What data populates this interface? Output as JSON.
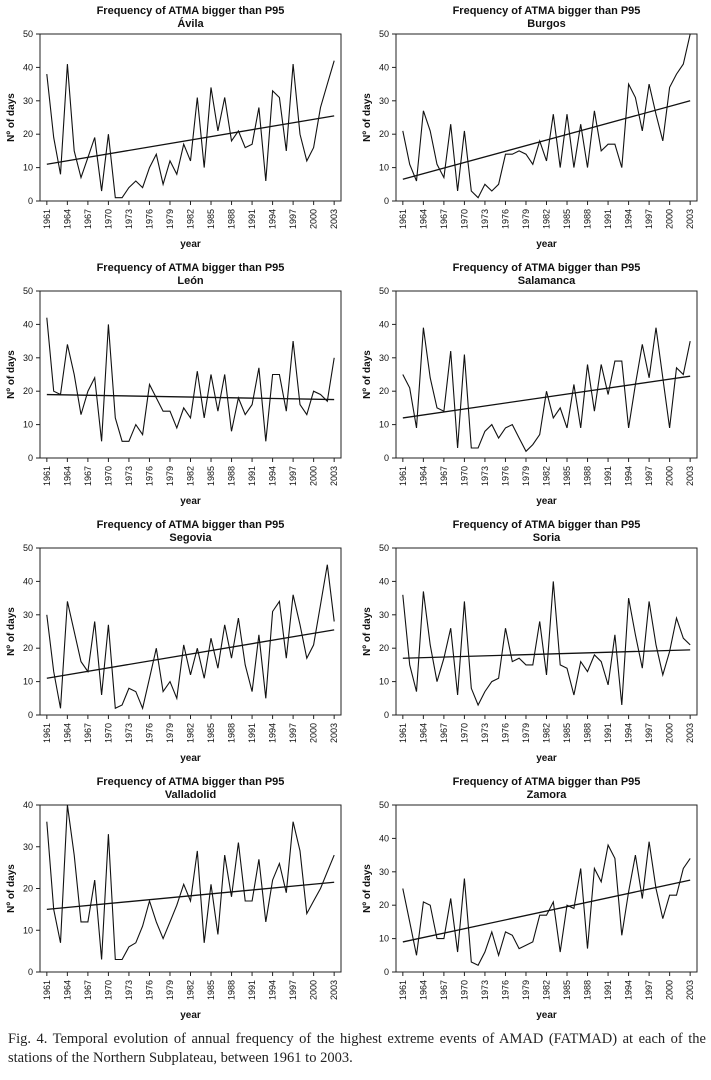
{
  "chart_data": [
    {
      "type": "line",
      "title": "Frequency of ATMA bigger than P95",
      "subtitle": "Ávila",
      "xlabel": "year",
      "ylabel": "Nº of days",
      "ylim": [
        0,
        50
      ],
      "y_ticks": [
        0,
        10,
        20,
        30,
        40,
        50
      ],
      "x_ticks": [
        1961,
        1964,
        1967,
        1970,
        1973,
        1976,
        1979,
        1982,
        1985,
        1988,
        1991,
        1994,
        1997,
        2000,
        2003
      ],
      "x": [
        1961,
        1962,
        1963,
        1964,
        1965,
        1966,
        1967,
        1968,
        1969,
        1970,
        1971,
        1972,
        1973,
        1974,
        1975,
        1976,
        1977,
        1978,
        1979,
        1980,
        1981,
        1982,
        1983,
        1984,
        1985,
        1986,
        1987,
        1988,
        1989,
        1990,
        1991,
        1992,
        1993,
        1994,
        1995,
        1996,
        1997,
        1998,
        1999,
        2000,
        2001,
        2002,
        2003
      ],
      "values": [
        38,
        19,
        8,
        41,
        15,
        7,
        13,
        19,
        3,
        20,
        1,
        1,
        4,
        6,
        4,
        10,
        14,
        5,
        12,
        8,
        17,
        12,
        31,
        10,
        34,
        21,
        31,
        18,
        21,
        16,
        17,
        28,
        6,
        33,
        31,
        15,
        41,
        20,
        12,
        16,
        28,
        35,
        42
      ],
      "trend": [
        11,
        25.5
      ],
      "grid": false
    },
    {
      "type": "line",
      "title": "Frequency of ATMA bigger than P95",
      "subtitle": "Burgos",
      "xlabel": "year",
      "ylabel": "Nº of days",
      "ylim": [
        0,
        50
      ],
      "y_ticks": [
        0,
        10,
        20,
        30,
        40,
        50
      ],
      "x_ticks": [
        1961,
        1964,
        1967,
        1970,
        1973,
        1976,
        1979,
        1982,
        1985,
        1988,
        1991,
        1994,
        1997,
        2000,
        2003
      ],
      "x": [
        1961,
        1962,
        1963,
        1964,
        1965,
        1966,
        1967,
        1968,
        1969,
        1970,
        1971,
        1972,
        1973,
        1974,
        1975,
        1976,
        1977,
        1978,
        1979,
        1980,
        1981,
        1982,
        1983,
        1984,
        1985,
        1986,
        1987,
        1988,
        1989,
        1990,
        1991,
        1992,
        1993,
        1994,
        1995,
        1996,
        1997,
        1998,
        1999,
        2000,
        2001,
        2002,
        2003
      ],
      "values": [
        21,
        11,
        6,
        27,
        21,
        11,
        7,
        23,
        3,
        21,
        3,
        1,
        5,
        3,
        5,
        14,
        14,
        15,
        14,
        11,
        18,
        12,
        26,
        10,
        26,
        10,
        23,
        10,
        27,
        15,
        17,
        17,
        10,
        35,
        31,
        21,
        35,
        26,
        18,
        34,
        38,
        41,
        53
      ],
      "trend": [
        6.5,
        30
      ],
      "grid": false
    },
    {
      "type": "line",
      "title": "Frequency of ATMA bigger than P95",
      "subtitle": "León",
      "xlabel": "year",
      "ylabel": "Nº of days",
      "ylim": [
        0,
        50
      ],
      "y_ticks": [
        0,
        10,
        20,
        30,
        40,
        50
      ],
      "x_ticks": [
        1961,
        1964,
        1967,
        1970,
        1973,
        1976,
        1979,
        1982,
        1985,
        1988,
        1991,
        1994,
        1997,
        2000,
        2003
      ],
      "x": [
        1961,
        1962,
        1963,
        1964,
        1965,
        1966,
        1967,
        1968,
        1969,
        1970,
        1971,
        1972,
        1973,
        1974,
        1975,
        1976,
        1977,
        1978,
        1979,
        1980,
        1981,
        1982,
        1983,
        1984,
        1985,
        1986,
        1987,
        1988,
        1989,
        1990,
        1991,
        1992,
        1993,
        1994,
        1995,
        1996,
        1997,
        1998,
        1999,
        2000,
        2001,
        2002,
        2003
      ],
      "values": [
        42,
        20,
        19,
        34,
        25,
        13,
        20,
        24,
        5,
        40,
        12,
        5,
        5,
        10,
        7,
        22,
        18,
        14,
        14,
        9,
        15,
        12,
        26,
        12,
        25,
        14,
        25,
        8,
        18,
        13,
        16,
        27,
        5,
        25,
        25,
        14,
        35,
        16,
        13,
        20,
        19,
        17,
        30
      ],
      "trend": [
        19,
        17.5
      ],
      "grid": false
    },
    {
      "type": "line",
      "title": "Frequency of ATMA bigger than P95",
      "subtitle": "Salamanca",
      "xlabel": "year",
      "ylabel": "Nº of days",
      "ylim": [
        0,
        50
      ],
      "y_ticks": [
        0,
        10,
        20,
        30,
        40,
        50
      ],
      "x_ticks": [
        1961,
        1964,
        1967,
        1970,
        1973,
        1976,
        1979,
        1982,
        1985,
        1988,
        1991,
        1994,
        1997,
        2000,
        2003
      ],
      "x": [
        1961,
        1962,
        1963,
        1964,
        1965,
        1966,
        1967,
        1968,
        1969,
        1970,
        1971,
        1972,
        1973,
        1974,
        1975,
        1976,
        1977,
        1978,
        1979,
        1980,
        1981,
        1982,
        1983,
        1984,
        1985,
        1986,
        1987,
        1988,
        1989,
        1990,
        1991,
        1992,
        1993,
        1994,
        1995,
        1996,
        1997,
        1998,
        1999,
        2000,
        2001,
        2002,
        2003
      ],
      "values": [
        25,
        21,
        9,
        39,
        24,
        15,
        14,
        32,
        3,
        31,
        3,
        3,
        8,
        10,
        6,
        9,
        10,
        6,
        2,
        4,
        7,
        20,
        12,
        15,
        9,
        22,
        9,
        28,
        14,
        28,
        19,
        29,
        29,
        9,
        22,
        34,
        24,
        39,
        24,
        9,
        27,
        25,
        35
      ],
      "trend": [
        12,
        24.5
      ],
      "grid": false
    },
    {
      "type": "line",
      "title": "Frequency of ATMA bigger than P95",
      "subtitle": "Segovia",
      "xlabel": "year",
      "ylabel": "Nº of days",
      "ylim": [
        0,
        50
      ],
      "y_ticks": [
        0,
        10,
        20,
        30,
        40,
        50
      ],
      "x_ticks": [
        1961,
        1964,
        1967,
        1970,
        1973,
        1976,
        1979,
        1982,
        1985,
        1988,
        1991,
        1994,
        1997,
        2000,
        2003
      ],
      "x": [
        1961,
        1962,
        1963,
        1964,
        1965,
        1966,
        1967,
        1968,
        1969,
        1970,
        1971,
        1972,
        1973,
        1974,
        1975,
        1976,
        1977,
        1978,
        1979,
        1980,
        1981,
        1982,
        1983,
        1984,
        1985,
        1986,
        1987,
        1988,
        1989,
        1990,
        1991,
        1992,
        1993,
        1994,
        1995,
        1996,
        1997,
        1998,
        1999,
        2000,
        2001,
        2002,
        2003
      ],
      "values": [
        30,
        13,
        2,
        34,
        25,
        16,
        13,
        28,
        6,
        27,
        2,
        3,
        8,
        7,
        2,
        11,
        20,
        7,
        10,
        5,
        21,
        12,
        20,
        11,
        23,
        14,
        27,
        17,
        29,
        15,
        7,
        24,
        5,
        31,
        34,
        17,
        36,
        27,
        17,
        21,
        33,
        45,
        28
      ],
      "trend": [
        11,
        25.5
      ],
      "grid": false
    },
    {
      "type": "line",
      "title": "Frequency of ATMA bigger than P95",
      "subtitle": "Soria",
      "xlabel": "year",
      "ylabel": "Nº of days",
      "ylim": [
        0,
        50
      ],
      "y_ticks": [
        0,
        10,
        20,
        30,
        40,
        50
      ],
      "x_ticks": [
        1961,
        1964,
        1967,
        1970,
        1973,
        1976,
        1979,
        1982,
        1985,
        1988,
        1991,
        1994,
        1997,
        2000,
        2003
      ],
      "x": [
        1961,
        1962,
        1963,
        1964,
        1965,
        1966,
        1967,
        1968,
        1969,
        1970,
        1971,
        1972,
        1973,
        1974,
        1975,
        1976,
        1977,
        1978,
        1979,
        1980,
        1981,
        1982,
        1983,
        1984,
        1985,
        1986,
        1987,
        1988,
        1989,
        1990,
        1991,
        1992,
        1993,
        1994,
        1995,
        1996,
        1997,
        1998,
        1999,
        2000,
        2001,
        2002,
        2003
      ],
      "values": [
        36,
        15,
        7,
        37,
        21,
        10,
        17,
        26,
        6,
        34,
        8,
        3,
        7,
        10,
        11,
        26,
        16,
        17,
        15,
        15,
        28,
        12,
        40,
        15,
        14,
        6,
        16,
        13,
        18,
        16,
        9,
        24,
        3,
        35,
        24,
        14,
        34,
        21,
        12,
        19,
        29,
        23,
        21
      ],
      "trend": [
        17,
        19.5
      ],
      "grid": false
    },
    {
      "type": "line",
      "title": "Frequency of ATMA bigger than P95",
      "subtitle": "Valladolid",
      "xlabel": "year",
      "ylabel": "Nº of days",
      "ylim": [
        0,
        40
      ],
      "y_ticks": [
        0,
        10,
        20,
        30,
        40
      ],
      "x_ticks": [
        1961,
        1964,
        1967,
        1970,
        1973,
        1976,
        1979,
        1982,
        1985,
        1988,
        1991,
        1994,
        1997,
        2000,
        2003
      ],
      "x": [
        1961,
        1962,
        1963,
        1964,
        1965,
        1966,
        1967,
        1968,
        1969,
        1970,
        1971,
        1972,
        1973,
        1974,
        1975,
        1976,
        1977,
        1978,
        1979,
        1980,
        1981,
        1982,
        1983,
        1984,
        1985,
        1986,
        1987,
        1988,
        1989,
        1990,
        1991,
        1992,
        1993,
        1994,
        1995,
        1996,
        1997,
        1998,
        1999,
        2000,
        2001,
        2002,
        2003
      ],
      "values": [
        36,
        15,
        7,
        40,
        28,
        12,
        12,
        22,
        3,
        33,
        3,
        3,
        6,
        7,
        11,
        17,
        12,
        8,
        12,
        16,
        21,
        17,
        29,
        7,
        21,
        9,
        28,
        18,
        31,
        17,
        17,
        27,
        12,
        22,
        26,
        19,
        36,
        29,
        14,
        17,
        20,
        24,
        28
      ],
      "trend": [
        15,
        21.5
      ],
      "grid": false
    },
    {
      "type": "line",
      "title": "Frequency of ATMA bigger than P95",
      "subtitle": "Zamora",
      "xlabel": "year",
      "ylabel": "Nº of days",
      "ylim": [
        0,
        50
      ],
      "y_ticks": [
        0,
        10,
        20,
        30,
        40,
        50
      ],
      "x_ticks": [
        1961,
        1964,
        1967,
        1970,
        1973,
        1976,
        1979,
        1982,
        1985,
        1988,
        1991,
        1994,
        1997,
        2000,
        2003
      ],
      "x": [
        1961,
        1962,
        1963,
        1964,
        1965,
        1966,
        1967,
        1968,
        1969,
        1970,
        1971,
        1972,
        1973,
        1974,
        1975,
        1976,
        1977,
        1978,
        1979,
        1980,
        1981,
        1982,
        1983,
        1984,
        1985,
        1986,
        1987,
        1988,
        1989,
        1990,
        1991,
        1992,
        1993,
        1994,
        1995,
        1996,
        1997,
        1998,
        1999,
        2000,
        2001,
        2002,
        2003
      ],
      "values": [
        25,
        15,
        5,
        21,
        20,
        10,
        10,
        22,
        6,
        28,
        3,
        2,
        6,
        12,
        5,
        12,
        11,
        7,
        8,
        9,
        17,
        17,
        21,
        6,
        20,
        19,
        31,
        7,
        31,
        27,
        38,
        34,
        11,
        24,
        35,
        22,
        39,
        25,
        16,
        23,
        23,
        31,
        34
      ],
      "trend": [
        9,
        27.5
      ],
      "grid": false
    }
  ],
  "caption": "Fig. 4. Temporal evolution of annual frequency of the highest extreme events of AMAD (FATMAD) at each of the stations of the Northern Subplateau, between 1961 to 2003."
}
